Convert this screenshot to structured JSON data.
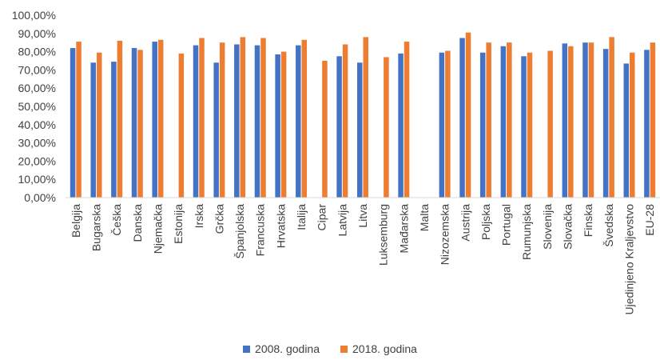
{
  "chart_data": {
    "type": "bar",
    "categories": [
      "Belgija",
      "Bugarska",
      "Češka",
      "Danska",
      "Njemačka",
      "Estonija",
      "Irska",
      "Grčka",
      "Španjolska",
      "Francuska",
      "Hrvatska",
      "Italija",
      "Cipar",
      "Latvija",
      "Litva",
      "Luksemburg",
      "Mađarska",
      "Malta",
      "Nizozemska",
      "Austrija",
      "Poljska",
      "Portugal",
      "Rumunjska",
      "Slovenija",
      "Slovačka",
      "Finska",
      "Švedska",
      "Ujedinjeno Kraljevstvo",
      "EU-28"
    ],
    "series": [
      {
        "name": "2008. godina",
        "color": "#4472C4",
        "values": [
          82.0,
          74.0,
          74.5,
          82.0,
          85.5,
          null,
          83.5,
          74.0,
          84.0,
          83.5,
          78.5,
          83.5,
          null,
          77.5,
          74.0,
          null,
          79.0,
          null,
          79.5,
          87.5,
          79.5,
          83.0,
          77.5,
          null,
          84.5,
          85.0,
          81.5,
          73.5,
          81.0
        ]
      },
      {
        "name": "2018. godina",
        "color": "#ED7D31",
        "values": [
          85.5,
          79.5,
          86.0,
          81.0,
          86.5,
          79.0,
          87.5,
          85.0,
          88.0,
          87.5,
          80.0,
          86.5,
          75.0,
          84.0,
          88.0,
          77.0,
          85.5,
          null,
          80.5,
          90.5,
          85.0,
          85.0,
          79.5,
          80.5,
          83.0,
          85.0,
          88.0,
          79.5,
          85.0
        ]
      }
    ],
    "y_ticks": [
      "0,00%",
      "10,00%",
      "20,00%",
      "30,00%",
      "40,00%",
      "50,00%",
      "60,00%",
      "70,00%",
      "80,00%",
      "90,00%",
      "100,00%"
    ],
    "ylim": [
      0,
      100
    ],
    "grid": false,
    "legend_position": "bottom"
  }
}
